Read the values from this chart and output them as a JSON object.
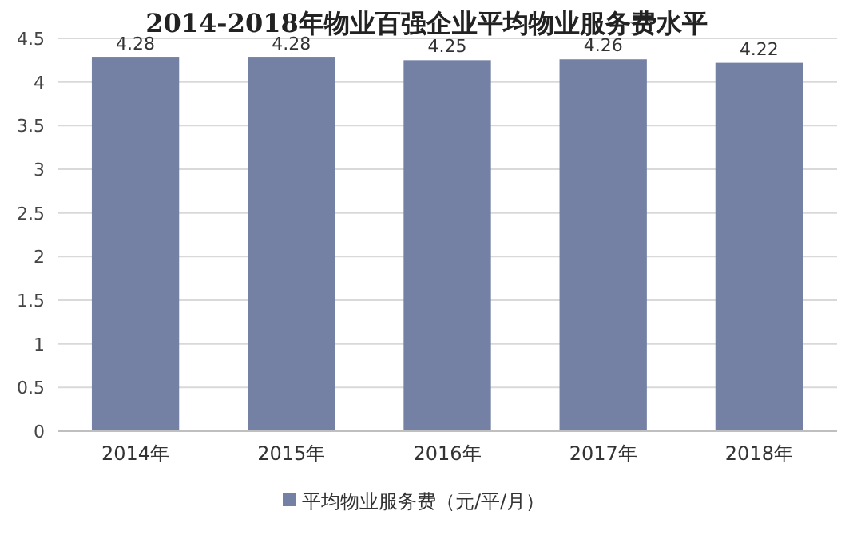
{
  "chart_data": {
    "type": "bar",
    "title": "2014-2018年物业百强企业平均物业服务费水平",
    "categories": [
      "2014年",
      "2015年",
      "2016年",
      "2017年",
      "2018年"
    ],
    "series": [
      {
        "name": "平均物业服务费（元/平/月）",
        "color": "#7480a4",
        "values": [
          4.28,
          4.28,
          4.25,
          4.26,
          4.22
        ]
      }
    ],
    "ylim": [
      0,
      4.5
    ],
    "yticks": [
      0,
      0.5,
      1,
      1.5,
      2,
      2.5,
      3,
      3.5,
      4,
      4.5
    ],
    "grid": "y",
    "legend": "bottom",
    "data_labels": true
  }
}
